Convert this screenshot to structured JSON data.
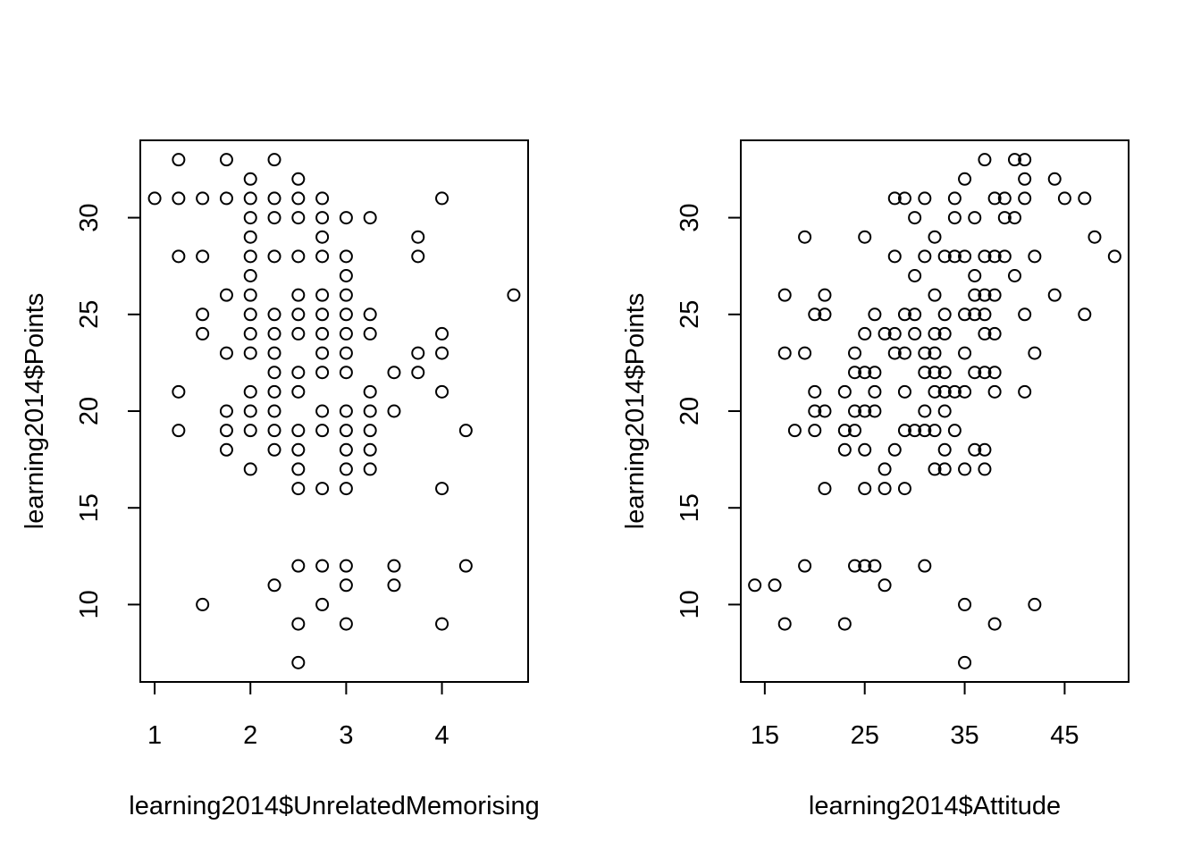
{
  "chart_data": [
    {
      "type": "scatter",
      "xlabel": "learning2014$UnrelatedMemorising",
      "ylabel": "learning2014$Points",
      "xticks": [
        1,
        2,
        3,
        4
      ],
      "yticks": [
        10,
        15,
        20,
        25,
        30
      ],
      "xlim": [
        0.85,
        4.9
      ],
      "ylim": [
        6.0,
        34.0
      ],
      "grid": false,
      "points": [
        [
          1.25,
          33
        ],
        [
          1.75,
          33
        ],
        [
          2.25,
          33
        ],
        [
          2.0,
          32
        ],
        [
          2.5,
          32
        ],
        [
          1.0,
          31
        ],
        [
          1.25,
          31
        ],
        [
          1.5,
          31
        ],
        [
          1.75,
          31
        ],
        [
          2.0,
          31
        ],
        [
          2.25,
          31
        ],
        [
          2.5,
          31
        ],
        [
          2.75,
          31
        ],
        [
          4.0,
          31
        ],
        [
          2.0,
          30
        ],
        [
          2.25,
          30
        ],
        [
          2.5,
          30
        ],
        [
          2.75,
          30
        ],
        [
          3.0,
          30
        ],
        [
          3.25,
          30
        ],
        [
          2.0,
          29
        ],
        [
          2.75,
          29
        ],
        [
          3.75,
          29
        ],
        [
          1.25,
          28
        ],
        [
          1.5,
          28
        ],
        [
          2.0,
          28
        ],
        [
          2.25,
          28
        ],
        [
          2.5,
          28
        ],
        [
          2.75,
          28
        ],
        [
          3.0,
          28
        ],
        [
          3.75,
          28
        ],
        [
          2.0,
          27
        ],
        [
          3.0,
          27
        ],
        [
          1.75,
          26
        ],
        [
          2.0,
          26
        ],
        [
          2.5,
          26
        ],
        [
          2.75,
          26
        ],
        [
          3.0,
          26
        ],
        [
          4.75,
          26
        ],
        [
          1.5,
          25
        ],
        [
          2.0,
          25
        ],
        [
          2.25,
          25
        ],
        [
          2.5,
          25
        ],
        [
          2.75,
          25
        ],
        [
          3.0,
          25
        ],
        [
          3.25,
          25
        ],
        [
          1.5,
          24
        ],
        [
          2.0,
          24
        ],
        [
          2.25,
          24
        ],
        [
          2.5,
          24
        ],
        [
          2.75,
          24
        ],
        [
          3.0,
          24
        ],
        [
          3.25,
          24
        ],
        [
          4.0,
          24
        ],
        [
          1.75,
          23
        ],
        [
          2.0,
          23
        ],
        [
          2.25,
          23
        ],
        [
          2.75,
          23
        ],
        [
          3.0,
          23
        ],
        [
          3.75,
          23
        ],
        [
          4.0,
          23
        ],
        [
          2.25,
          22
        ],
        [
          2.5,
          22
        ],
        [
          2.75,
          22
        ],
        [
          3.0,
          22
        ],
        [
          3.5,
          22
        ],
        [
          3.75,
          22
        ],
        [
          1.25,
          21
        ],
        [
          2.0,
          21
        ],
        [
          2.25,
          21
        ],
        [
          2.5,
          21
        ],
        [
          3.25,
          21
        ],
        [
          4.0,
          21
        ],
        [
          1.75,
          20
        ],
        [
          2.0,
          20
        ],
        [
          2.25,
          20
        ],
        [
          2.75,
          20
        ],
        [
          3.0,
          20
        ],
        [
          3.25,
          20
        ],
        [
          3.5,
          20
        ],
        [
          1.25,
          19
        ],
        [
          1.75,
          19
        ],
        [
          2.0,
          19
        ],
        [
          2.25,
          19
        ],
        [
          2.5,
          19
        ],
        [
          2.75,
          19
        ],
        [
          3.0,
          19
        ],
        [
          3.25,
          19
        ],
        [
          4.25,
          19
        ],
        [
          1.75,
          18
        ],
        [
          2.25,
          18
        ],
        [
          2.5,
          18
        ],
        [
          3.0,
          18
        ],
        [
          3.25,
          18
        ],
        [
          2.0,
          17
        ],
        [
          2.5,
          17
        ],
        [
          3.0,
          17
        ],
        [
          3.25,
          17
        ],
        [
          2.5,
          16
        ],
        [
          2.75,
          16
        ],
        [
          3.0,
          16
        ],
        [
          4.0,
          16
        ],
        [
          2.5,
          12
        ],
        [
          2.75,
          12
        ],
        [
          3.0,
          12
        ],
        [
          3.5,
          12
        ],
        [
          4.25,
          12
        ],
        [
          2.25,
          11
        ],
        [
          3.0,
          11
        ],
        [
          3.5,
          11
        ],
        [
          1.5,
          10
        ],
        [
          2.75,
          10
        ],
        [
          2.5,
          9
        ],
        [
          3.0,
          9
        ],
        [
          4.0,
          9
        ],
        [
          2.5,
          7
        ]
      ]
    },
    {
      "type": "scatter",
      "xlabel": "learning2014$Attitude",
      "ylabel": "learning2014$Points",
      "xticks": [
        15,
        25,
        35,
        45
      ],
      "yticks": [
        10,
        15,
        20,
        25,
        30
      ],
      "xlim": [
        12.6,
        51.4
      ],
      "ylim": [
        6.0,
        34.0
      ],
      "grid": false,
      "points": [
        [
          37,
          33
        ],
        [
          40,
          33
        ],
        [
          41,
          33
        ],
        [
          35,
          32
        ],
        [
          41,
          32
        ],
        [
          44,
          32
        ],
        [
          28,
          31
        ],
        [
          29,
          31
        ],
        [
          31,
          31
        ],
        [
          34,
          31
        ],
        [
          38,
          31
        ],
        [
          39,
          31
        ],
        [
          41,
          31
        ],
        [
          45,
          31
        ],
        [
          47,
          31
        ],
        [
          30,
          30
        ],
        [
          34,
          30
        ],
        [
          36,
          30
        ],
        [
          39,
          30
        ],
        [
          40,
          30
        ],
        [
          19,
          29
        ],
        [
          25,
          29
        ],
        [
          32,
          29
        ],
        [
          48,
          29
        ],
        [
          28,
          28
        ],
        [
          31,
          28
        ],
        [
          33,
          28
        ],
        [
          34,
          28
        ],
        [
          35,
          28
        ],
        [
          37,
          28
        ],
        [
          38,
          28
        ],
        [
          39,
          28
        ],
        [
          42,
          28
        ],
        [
          50,
          28
        ],
        [
          30,
          27
        ],
        [
          36,
          27
        ],
        [
          40,
          27
        ],
        [
          17,
          26
        ],
        [
          21,
          26
        ],
        [
          32,
          26
        ],
        [
          36,
          26
        ],
        [
          37,
          26
        ],
        [
          38,
          26
        ],
        [
          44,
          26
        ],
        [
          20,
          25
        ],
        [
          21,
          25
        ],
        [
          26,
          25
        ],
        [
          29,
          25
        ],
        [
          30,
          25
        ],
        [
          33,
          25
        ],
        [
          35,
          25
        ],
        [
          36,
          25
        ],
        [
          37,
          25
        ],
        [
          41,
          25
        ],
        [
          47,
          25
        ],
        [
          25,
          24
        ],
        [
          27,
          24
        ],
        [
          28,
          24
        ],
        [
          30,
          24
        ],
        [
          32,
          24
        ],
        [
          33,
          24
        ],
        [
          37,
          24
        ],
        [
          38,
          24
        ],
        [
          17,
          23
        ],
        [
          19,
          23
        ],
        [
          24,
          23
        ],
        [
          28,
          23
        ],
        [
          29,
          23
        ],
        [
          31,
          23
        ],
        [
          32,
          23
        ],
        [
          35,
          23
        ],
        [
          42,
          23
        ],
        [
          24,
          22
        ],
        [
          25,
          22
        ],
        [
          26,
          22
        ],
        [
          31,
          22
        ],
        [
          32,
          22
        ],
        [
          33,
          22
        ],
        [
          36,
          22
        ],
        [
          37,
          22
        ],
        [
          38,
          22
        ],
        [
          20,
          21
        ],
        [
          23,
          21
        ],
        [
          26,
          21
        ],
        [
          29,
          21
        ],
        [
          32,
          21
        ],
        [
          33,
          21
        ],
        [
          34,
          21
        ],
        [
          35,
          21
        ],
        [
          38,
          21
        ],
        [
          41,
          21
        ],
        [
          20,
          20
        ],
        [
          21,
          20
        ],
        [
          24,
          20
        ],
        [
          25,
          20
        ],
        [
          26,
          20
        ],
        [
          31,
          20
        ],
        [
          33,
          20
        ],
        [
          18,
          19
        ],
        [
          20,
          19
        ],
        [
          23,
          19
        ],
        [
          24,
          19
        ],
        [
          29,
          19
        ],
        [
          30,
          19
        ],
        [
          31,
          19
        ],
        [
          32,
          19
        ],
        [
          34,
          19
        ],
        [
          23,
          18
        ],
        [
          25,
          18
        ],
        [
          28,
          18
        ],
        [
          33,
          18
        ],
        [
          36,
          18
        ],
        [
          37,
          18
        ],
        [
          27,
          17
        ],
        [
          32,
          17
        ],
        [
          33,
          17
        ],
        [
          35,
          17
        ],
        [
          37,
          17
        ],
        [
          21,
          16
        ],
        [
          25,
          16
        ],
        [
          27,
          16
        ],
        [
          29,
          16
        ],
        [
          19,
          12
        ],
        [
          24,
          12
        ],
        [
          25,
          12
        ],
        [
          26,
          12
        ],
        [
          31,
          12
        ],
        [
          14,
          11
        ],
        [
          16,
          11
        ],
        [
          27,
          11
        ],
        [
          35,
          10
        ],
        [
          42,
          10
        ],
        [
          17,
          9
        ],
        [
          23,
          9
        ],
        [
          38,
          9
        ],
        [
          35,
          7
        ]
      ]
    }
  ]
}
